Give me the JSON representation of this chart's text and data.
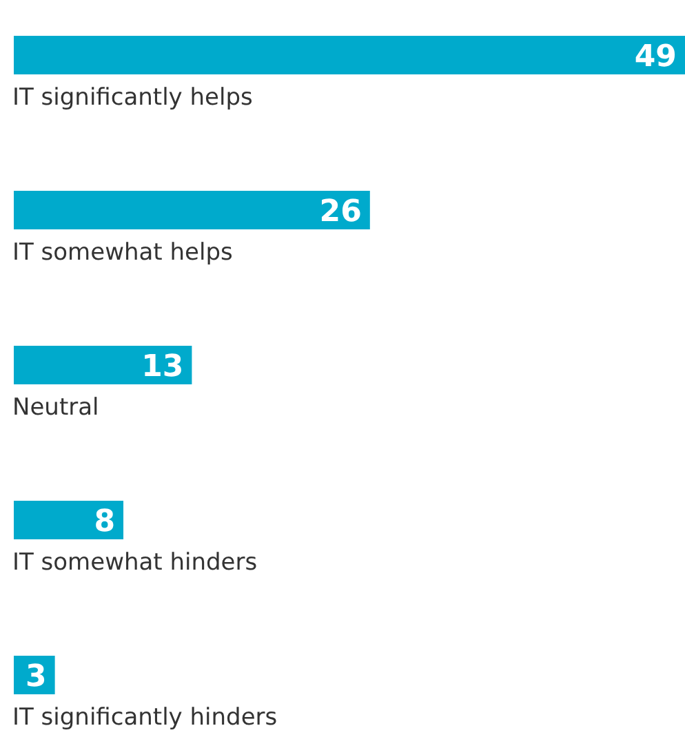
{
  "chart_data": {
    "type": "bar",
    "orientation": "horizontal",
    "categories": [
      "IT significantly helps",
      "IT somewhat helps",
      "Neutral",
      "IT somewhat hinders",
      "IT significantly hinders"
    ],
    "values": [
      49,
      26,
      13,
      8,
      3
    ],
    "color": "#00aacc",
    "data_labels": true
  }
}
